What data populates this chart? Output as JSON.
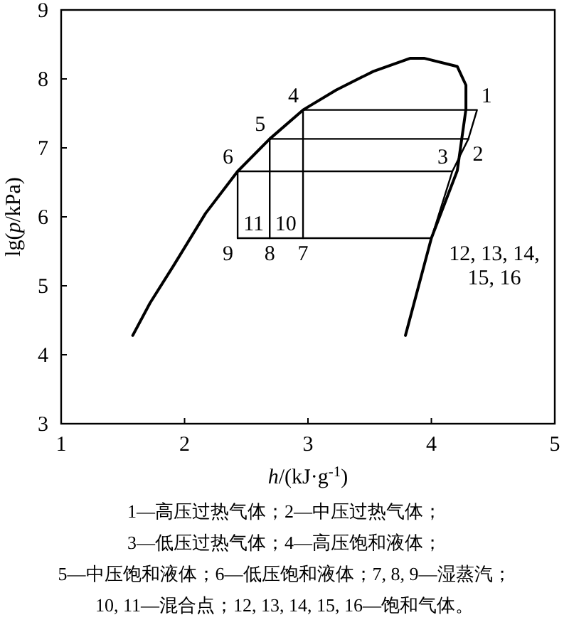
{
  "chart_data": {
    "type": "line",
    "xlabel": "*h*/(kJ·g$^{-1}$)",
    "ylabel": "lg(*p*/kPa)",
    "xlim": [
      1,
      5
    ],
    "ylim": [
      3,
      9
    ],
    "xticks": [
      1,
      2,
      3,
      4,
      5
    ],
    "yticks": [
      3,
      4,
      5,
      6,
      7,
      8,
      9
    ],
    "grid": false,
    "marker": "none",
    "line_style": "solid",
    "series": [
      {
        "color": "#000000",
        "x": [
          1.58,
          1.72,
          1.91,
          2.17,
          2.43,
          2.69,
          2.96,
          3.23,
          3.53,
          3.83,
          3.94,
          4.21,
          4.28,
          4.28,
          4.21,
          4.0,
          3.79
        ],
        "values": [
          4.28,
          4.75,
          5.29,
          6.05,
          6.66,
          7.13,
          7.55,
          7.84,
          8.11,
          8.3,
          8.3,
          8.18,
          7.91,
          7.56,
          6.67,
          5.69,
          4.28
        ]
      },
      {
        "color": "#000000",
        "x": [
          2.96,
          4.37,
          4.3,
          4.17,
          4.0
        ],
        "values": [
          7.55,
          7.55,
          7.13,
          6.66,
          5.69
        ]
      },
      {
        "color": "#000000",
        "x": [
          2.69,
          4.3
        ],
        "values": [
          7.13,
          7.13
        ]
      },
      {
        "color": "#000000",
        "x": [
          2.43,
          4.17
        ],
        "values": [
          6.66,
          6.66
        ]
      },
      {
        "color": "#000000",
        "x": [
          2.43,
          4.0
        ],
        "values": [
          5.69,
          5.69
        ]
      },
      {
        "color": "#000000",
        "x": [
          2.96,
          2.96
        ],
        "values": [
          7.55,
          5.69
        ]
      },
      {
        "color": "#000000",
        "x": [
          2.69,
          2.69
        ],
        "values": [
          7.13,
          5.69
        ]
      },
      {
        "color": "#000000",
        "x": [
          2.43,
          2.43
        ],
        "values": [
          6.66,
          5.69
        ]
      }
    ],
    "annotations": [
      {
        "text": "1",
        "x": 4.37,
        "y": 7.55
      },
      {
        "text": "2",
        "x": 4.3,
        "y": 7.13
      },
      {
        "text": "3",
        "x": 4.17,
        "y": 6.66
      },
      {
        "text": "4",
        "x": 2.96,
        "y": 7.55
      },
      {
        "text": "5",
        "x": 2.69,
        "y": 7.13
      },
      {
        "text": "6",
        "x": 2.43,
        "y": 6.66
      },
      {
        "text": "7",
        "x": 2.96,
        "y": 5.69
      },
      {
        "text": "8",
        "x": 2.69,
        "y": 5.69
      },
      {
        "text": "9",
        "x": 2.43,
        "y": 5.69
      },
      {
        "text": "10",
        "x": 2.82,
        "y": 5.69
      },
      {
        "text": "11",
        "x": 2.56,
        "y": 5.69
      },
      {
        "text": "12, 13, 14, 15, 16",
        "x": 4.0,
        "y": 5.69
      },
      "1—高压过热气体；2—中压过热气体；",
      "3—低压过热气体；4—高压饱和液体；",
      "5—中压饱和液体；6—低压饱和液体；7, 8, 9—湿蒸汽；",
      "10, 11—混合点；12, 13, 14, 15, 16—饱和气体。"
    ]
  }
}
